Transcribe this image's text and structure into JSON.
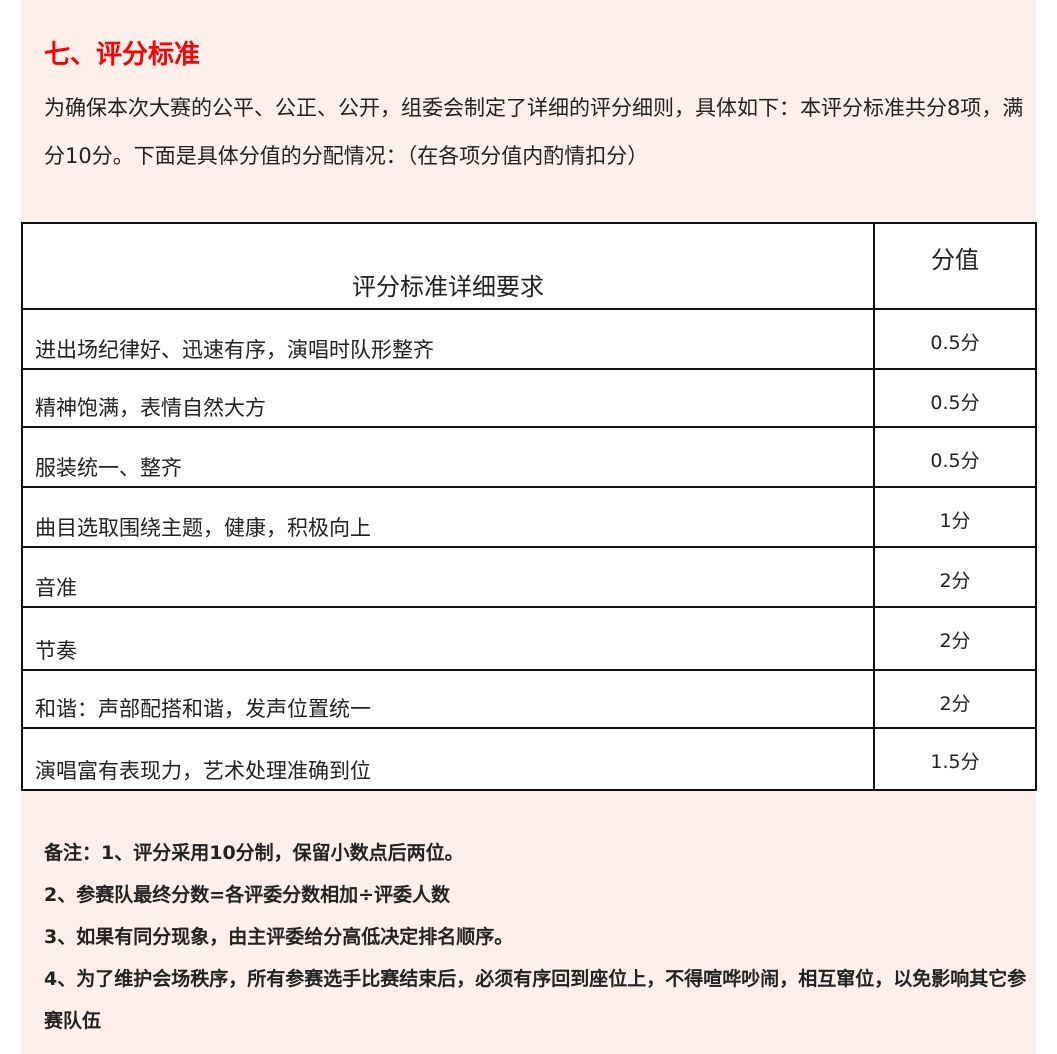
{
  "heading": "七、评分标准",
  "intro": "为确保本次大赛的公平、公正、公开，组委会制定了详细的评分细则，具体如下：本评分标准共分8项，满分10分。下面是具体分值的分配情况：（在各项分值内酌情扣分）",
  "table": {
    "headers": [
      "评分标准详细要求",
      "分值"
    ],
    "rows": [
      {
        "req": "进出场纪律好、迅速有序，演唱时队形整齐",
        "val": "0.5分"
      },
      {
        "req": "精神饱满，表情自然大方",
        "val": "0.5分"
      },
      {
        "req": "服装统一、整齐",
        "val": "0.5分"
      },
      {
        "req": "曲目选取围绕主题，健康，积极向上",
        "val": "1分"
      },
      {
        "req": "音准",
        "val": "2分"
      },
      {
        "req": "节奏",
        "val": "2分"
      },
      {
        "req": "和谐：声部配搭和谐，发声位置统一",
        "val": "2分"
      },
      {
        "req": "演唱富有表现力，艺术处理准确到位",
        "val": "1.5分"
      }
    ]
  },
  "notes": [
    "备注：1、评分采用10分制，保留小数点后两位。",
    "2、参赛队最终分数=各评委分数相加÷评委人数",
    "3、如果有同分现象，由主评委给分高低决定排名顺序。",
    "4、为了维护会场秩序，所有参赛选手比赛结束后，必须有序回到座位上，不得喧哗吵闹，相互窜位，以免影响其它参赛队伍"
  ],
  "colors": {
    "heading": "#ff0000",
    "background": "#fdefe9"
  }
}
